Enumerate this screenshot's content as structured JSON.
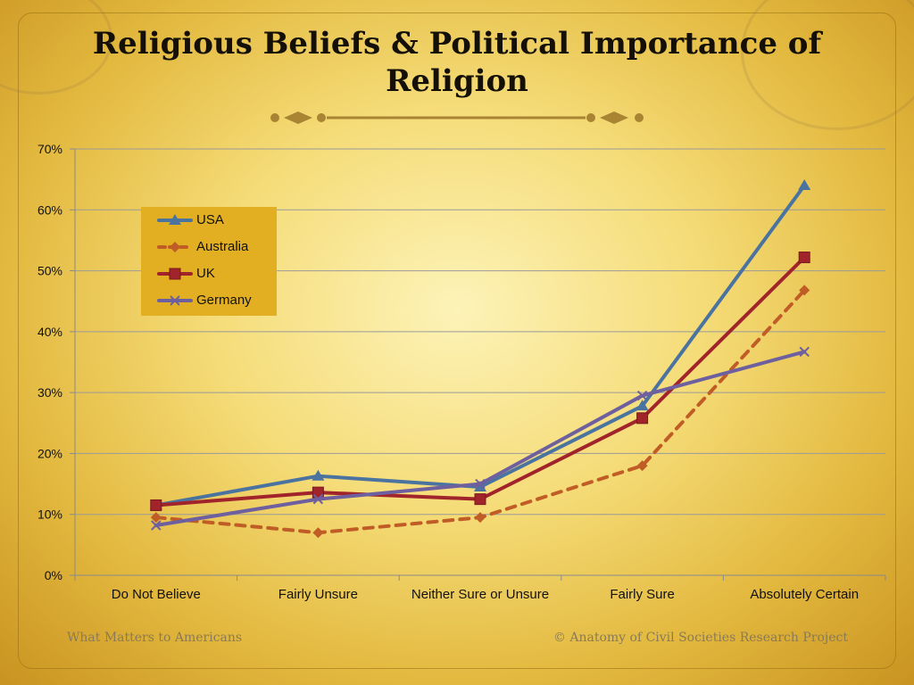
{
  "slide": {
    "title": "Religious Beliefs & Political Importance of Religion",
    "footer_left": "What Matters to Americans",
    "footer_right": "© Anatomy of Civil Societies Research Project"
  },
  "chart_data": {
    "type": "line",
    "title": "",
    "xlabel": "",
    "ylabel": "",
    "categories": [
      "Do Not Believe",
      "Fairly Unsure",
      "Neither Sure or Unsure",
      "Fairly Sure",
      "Absolutely Certain"
    ],
    "ylim": [
      0,
      70
    ],
    "yticks": [
      0,
      10,
      20,
      30,
      40,
      50,
      60,
      70
    ],
    "ytick_labels": [
      "0%",
      "10%",
      "20%",
      "30%",
      "40%",
      "50%",
      "60%",
      "70%"
    ],
    "grid": true,
    "legend_position": "top-left",
    "series": [
      {
        "name": "USA",
        "values": [
          11.5,
          16.3,
          14.5,
          27.8,
          64
        ],
        "color": "#4a73a0",
        "marker": "triangle",
        "dash": false
      },
      {
        "name": "Australia",
        "values": [
          9.5,
          7,
          9.5,
          18,
          46.8
        ],
        "color": "#c05c26",
        "marker": "diamond",
        "dash": true
      },
      {
        "name": "UK",
        "values": [
          11.5,
          13.6,
          12.5,
          25.8,
          52.2
        ],
        "color": "#a0242a",
        "marker": "square",
        "dash": false
      },
      {
        "name": "Germany",
        "values": [
          8.2,
          12.5,
          15,
          29.5,
          36.7
        ],
        "color": "#6e5f9e",
        "marker": "x",
        "dash": false
      }
    ]
  }
}
